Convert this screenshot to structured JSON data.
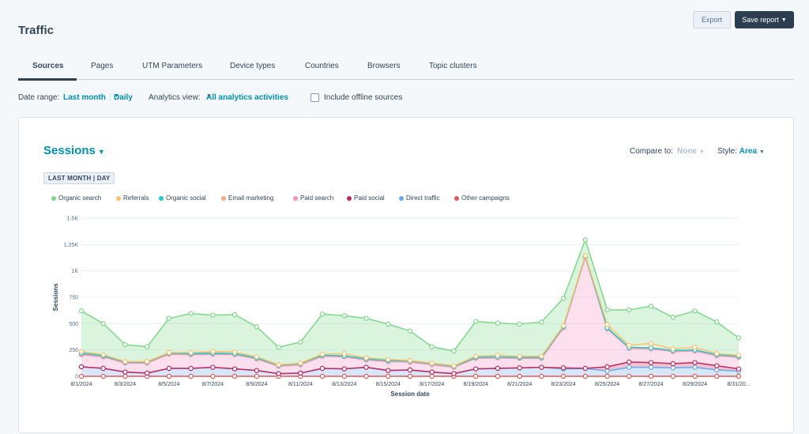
{
  "header": {
    "title": "Traffic",
    "export_label": "Export",
    "save_label": "Save report"
  },
  "tabs": [
    {
      "label": "Sources",
      "active": true
    },
    {
      "label": "Pages"
    },
    {
      "label": "UTM Parameters"
    },
    {
      "label": "Device types"
    },
    {
      "label": "Countries"
    },
    {
      "label": "Browsers"
    },
    {
      "label": "Topic clusters"
    }
  ],
  "filters": {
    "date_range_label": "Date range:",
    "date_range_value": "Last month",
    "frequency_value": "Daily",
    "analytics_view_label": "Analytics view:",
    "analytics_view_value": "All analytics activities",
    "offline_label": "Include offline sources",
    "offline_checked": false
  },
  "card": {
    "metric": "Sessions",
    "compare_label": "Compare to:",
    "compare_value": "None",
    "style_label": "Style:",
    "style_value": "Area",
    "badge": "LAST MONTH | DAY"
  },
  "icons": {
    "save_caret": "chevron-down-icon",
    "metric_caret": "chevron-down-icon"
  },
  "chart_data": {
    "type": "area",
    "xlabel": "Session date",
    "ylabel": "Sessions",
    "ylim": [
      0,
      1500
    ],
    "y_ticks": [
      "0",
      "250",
      "500",
      "750",
      "1K",
      "1.25K",
      "1.5K"
    ],
    "y_tick_values": [
      0,
      250,
      500,
      750,
      1000,
      1250,
      1500
    ],
    "grid": true,
    "legend_position": "top-left",
    "x_tick_labels": [
      "8/1/2024",
      "8/3/2024",
      "8/5/2024",
      "8/7/2024",
      "8/9/2024",
      "8/11/2024",
      "8/13/2024",
      "8/15/2024",
      "8/17/2024",
      "8/19/2024",
      "8/21/2024",
      "8/23/2024",
      "8/25/2024",
      "8/27/2024",
      "8/29/2024",
      "8/31/20..."
    ],
    "x": [
      "8/1/2024",
      "8/2/2024",
      "8/3/2024",
      "8/4/2024",
      "8/5/2024",
      "8/6/2024",
      "8/7/2024",
      "8/8/2024",
      "8/9/2024",
      "8/10/2024",
      "8/11/2024",
      "8/12/2024",
      "8/13/2024",
      "8/14/2024",
      "8/15/2024",
      "8/16/2024",
      "8/17/2024",
      "8/18/2024",
      "8/19/2024",
      "8/20/2024",
      "8/21/2024",
      "8/22/2024",
      "8/23/2024",
      "8/24/2024",
      "8/25/2024",
      "8/26/2024",
      "8/27/2024",
      "8/28/2024",
      "8/29/2024",
      "8/30/2024",
      "8/31/2024"
    ],
    "stacked": true,
    "series": [
      {
        "name": "Other campaigns",
        "color": "#e05a5a",
        "values": [
          0,
          0,
          0,
          0,
          0,
          0,
          0,
          0,
          0,
          0,
          0,
          0,
          0,
          0,
          0,
          0,
          0,
          0,
          0,
          0,
          0,
          0,
          0,
          0,
          0,
          0,
          0,
          0,
          0,
          0,
          0
        ]
      },
      {
        "name": "Direct traffic",
        "color": "#6aa9ee",
        "values": [
          90,
          75,
          40,
          30,
          75,
          75,
          85,
          70,
          55,
          25,
          30,
          75,
          70,
          85,
          55,
          60,
          40,
          25,
          70,
          75,
          80,
          85,
          70,
          75,
          50,
          85,
          85,
          80,
          85,
          60,
          50
        ]
      },
      {
        "name": "Paid social",
        "color": "#c1285e",
        "values": [
          0,
          0,
          0,
          0,
          0,
          0,
          0,
          0,
          0,
          0,
          0,
          0,
          0,
          0,
          0,
          0,
          0,
          0,
          0,
          0,
          0,
          0,
          10,
          0,
          40,
          50,
          45,
          40,
          45,
          40,
          20
        ]
      },
      {
        "name": "Paid search",
        "color": "#f491c3",
        "values": [
          115,
          110,
          85,
          95,
          135,
          130,
          125,
          135,
          110,
          70,
          80,
          115,
          115,
          70,
          85,
          75,
          70,
          60,
          100,
          100,
          90,
          85,
          380,
          1055,
          360,
          130,
          130,
          115,
          110,
          95,
          110
        ]
      },
      {
        "name": "Email marketing",
        "color": "#f5a686",
        "values": [
          10,
          5,
          5,
          5,
          5,
          5,
          5,
          5,
          5,
          5,
          5,
          5,
          5,
          5,
          5,
          5,
          5,
          5,
          5,
          5,
          5,
          5,
          5,
          5,
          5,
          5,
          5,
          5,
          5,
          5,
          5
        ]
      },
      {
        "name": "Organic social",
        "color": "#1fc8d6",
        "values": [
          5,
          5,
          5,
          5,
          5,
          5,
          5,
          5,
          5,
          5,
          5,
          5,
          5,
          5,
          5,
          5,
          5,
          5,
          5,
          5,
          5,
          5,
          5,
          5,
          5,
          5,
          5,
          5,
          5,
          5,
          5
        ]
      },
      {
        "name": "Referrals",
        "color": "#f6c26f",
        "values": [
          15,
          10,
          5,
          5,
          5,
          10,
          15,
          15,
          10,
          5,
          5,
          10,
          20,
          10,
          10,
          5,
          5,
          5,
          10,
          15,
          10,
          10,
          10,
          5,
          30,
          20,
          40,
          15,
          25,
          10,
          10
        ]
      },
      {
        "name": "Organic search",
        "color": "#7fd88a",
        "values": [
          385,
          295,
          160,
          140,
          325,
          370,
          345,
          355,
          285,
          165,
          200,
          380,
          360,
          375,
          335,
          280,
          155,
          140,
          330,
          305,
          305,
          325,
          260,
          150,
          140,
          335,
          355,
          300,
          345,
          300,
          165
        ]
      }
    ]
  }
}
